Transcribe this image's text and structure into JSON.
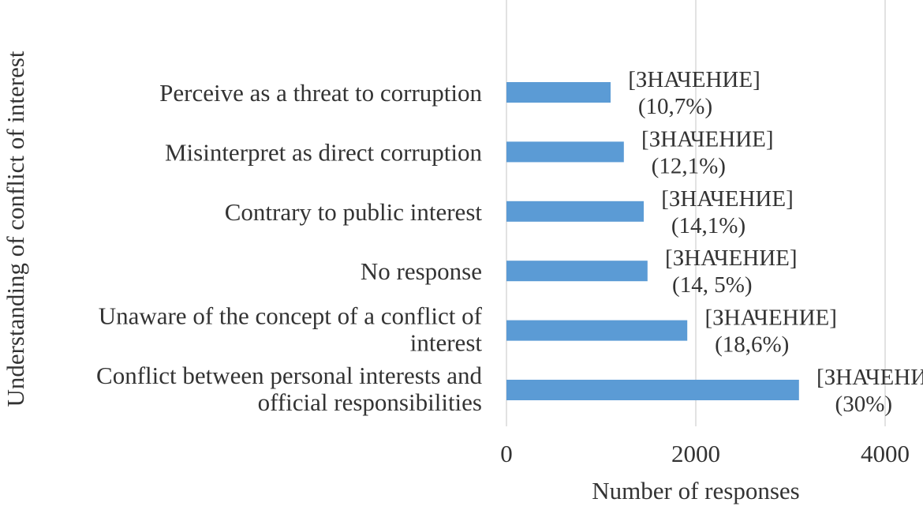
{
  "chart_data": {
    "type": "bar",
    "orientation": "horizontal",
    "categories": [
      [
        "Perceive as a threat to corruption"
      ],
      [
        "Misinterpret as direct corruption"
      ],
      [
        "Contrary to public interest"
      ],
      [
        "No response"
      ],
      [
        "Unaware of the concept of a conflict of",
        "interest"
      ],
      [
        "Conflict between personal interests and",
        "official responsibilities"
      ]
    ],
    "values": [
      1100,
      1240,
      1450,
      1490,
      1910,
      3090
    ],
    "data_labels": [
      [
        "[ЗНАЧЕНИЕ]",
        "(10,7%)"
      ],
      [
        "[ЗНАЧЕНИЕ]",
        "(12,1%)"
      ],
      [
        "[ЗНАЧЕНИЕ]",
        "(14,1%)"
      ],
      [
        "[ЗНАЧЕНИЕ]",
        "(14, 5%)"
      ],
      [
        "[ЗНАЧЕНИЕ]",
        "(18,6%)"
      ],
      [
        "[ЗНАЧЕНИЕ]",
        "(30%)"
      ]
    ],
    "xlabel": "Number of responses",
    "ylabel": "Understanding of conflict of interest",
    "xlim": [
      0,
      4000
    ],
    "xticks": [
      0,
      2000,
      4000
    ],
    "xtick_labels": [
      "0",
      "2000",
      "4000"
    ],
    "grid": "vertical",
    "legend": "none",
    "bar_color": "#5b9bd5",
    "text_color": "#333333",
    "grid_color": "#d9d9d9"
  }
}
